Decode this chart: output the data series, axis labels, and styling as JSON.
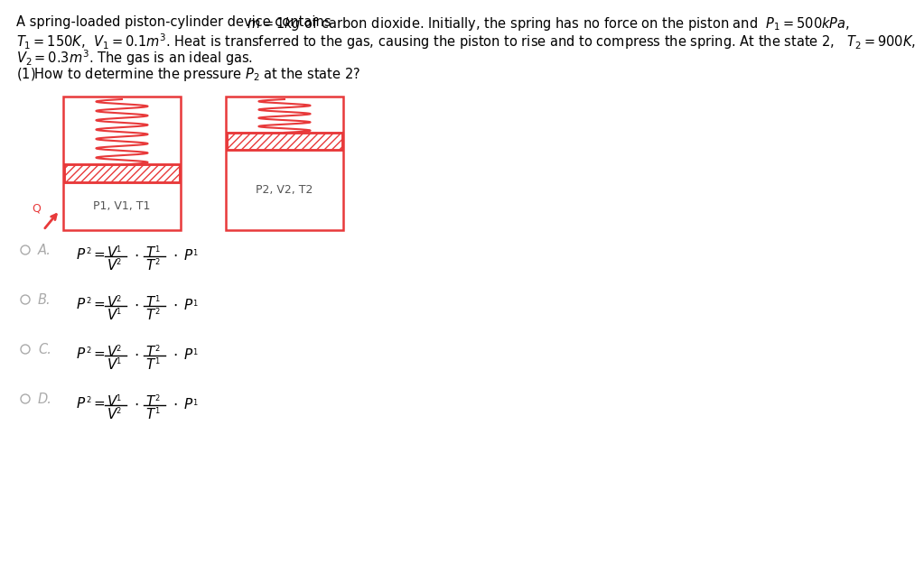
{
  "bg_color": "#ffffff",
  "text_color": "#000000",
  "red_color": "#e8393a",
  "gray_color": "#aaaaaa",
  "dark_gray": "#555555",
  "line1": "A spring-loaded piston-cylinder device contains",
  "line1b": "$m=1kg$ of carbon dioxide. Initially, the spring has no force on the piston and  $P_1=500kPa$,",
  "line2": "$T_1=150K$,  $V_1=0.1m^3$. Heat is transferred to the gas, causing the piston to rise and to compress the spring. At the state 2,   $T_2=900K$,",
  "line3": "$V_2=0.3m^3$. The gas is an ideal gas.",
  "question": "(1)How to determine the pressure $P_2$ at the state 2?",
  "label1": "P1, V1, T1",
  "label2": "P2, V2, T2",
  "opts": [
    "A.",
    "B.",
    "C.",
    "D."
  ],
  "opt_Vnum": [
    "V_1",
    "V_2",
    "V_2",
    "V_1"
  ],
  "opt_Vden": [
    "V_2",
    "V_1",
    "V_1",
    "V_2"
  ],
  "opt_Tnum": [
    "T_1",
    "T_1",
    "T_2",
    "T_2"
  ],
  "opt_Tden": [
    "T_2",
    "T_2",
    "T_1",
    "T_1"
  ]
}
